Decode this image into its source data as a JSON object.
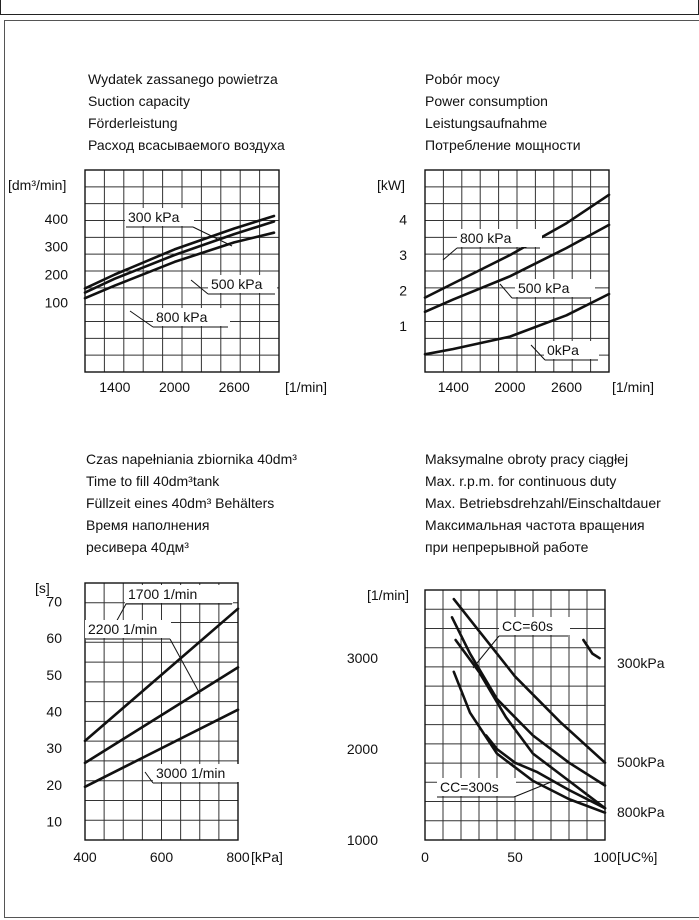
{
  "titles": {
    "c1": [
      "Wydatek zassanego powietrza",
      "Suction capacity",
      "Förderleistung",
      "Расход всасываемого воздуха"
    ],
    "c2": [
      "Pobór mocy",
      "Power consumption",
      "Leistungsaufnahme",
      "Потребление мощности"
    ],
    "c3": [
      "Czas napełniania zbiornika 40dm³",
      "Time to fill  40dm³tank",
      "Füllzeit eines  40dm³ Behälters",
      "Время наполнения",
      "ресивера 40дм³"
    ],
    "c4": [
      "Maksymalne obroty pracy ciągłej",
      "Max. r.p.m. for continuous duty",
      "Max. Betriebsdrehzahl/Einschaltdauer",
      "Максимальная частота вращения",
      "при непрерывной работе"
    ]
  },
  "chart_data": [
    {
      "type": "line",
      "ylabel": "[dm³/min]",
      "xlabel": "[1/min]",
      "xlim": [
        1100,
        3050
      ],
      "ylim": [
        -150,
        575
      ],
      "xticks": [
        "1400",
        "2000",
        "2600"
      ],
      "xtick_values": [
        1400,
        2000,
        2600
      ],
      "yticks": [
        "100",
        "200",
        "300",
        "400"
      ],
      "ytick_values": [
        100,
        200,
        300,
        400
      ],
      "grid": true,
      "series": [
        {
          "name": "300 kPa",
          "x": [
            1100,
            1400,
            2000,
            2600,
            3000
          ],
          "y": [
            150,
            200,
            290,
            365,
            410
          ]
        },
        {
          "name": "500 kPa",
          "x": [
            1100,
            1400,
            2000,
            2600,
            3000
          ],
          "y": [
            135,
            185,
            270,
            345,
            390
          ]
        },
        {
          "name": "800 kPa",
          "x": [
            1100,
            1400,
            2000,
            2600,
            3000
          ],
          "y": [
            115,
            160,
            245,
            315,
            350
          ]
        }
      ],
      "annotations": [
        "300 kPa",
        "500 kPa",
        "800 kPa"
      ]
    },
    {
      "type": "line",
      "ylabel": "[kW]",
      "xlabel": "[1/min]",
      "xlim": [
        1100,
        3050
      ],
      "ylim": [
        -0.3,
        5.4
      ],
      "xticks": [
        "1400",
        "2000",
        "2600"
      ],
      "xtick_values": [
        1400,
        2000,
        2600
      ],
      "yticks": [
        "1",
        "2",
        "3",
        "4"
      ],
      "ytick_values": [
        1,
        2,
        3,
        4
      ],
      "grid": true,
      "series": [
        {
          "name": "800 kPa",
          "x": [
            1100,
            1400,
            2000,
            2600,
            3050
          ],
          "y": [
            1.8,
            2.2,
            3.0,
            3.9,
            4.7
          ]
        },
        {
          "name": "500 kPa",
          "x": [
            1100,
            1400,
            2000,
            2600,
            3050
          ],
          "y": [
            1.4,
            1.75,
            2.4,
            3.2,
            3.85
          ]
        },
        {
          "name": "0kPa",
          "x": [
            1100,
            1400,
            2000,
            2600,
            3050
          ],
          "y": [
            0.2,
            0.35,
            0.7,
            1.3,
            1.9
          ]
        }
      ],
      "annotations": [
        "800 kPa",
        "500 kPa",
        "0kPa"
      ]
    },
    {
      "type": "line",
      "ylabel": "[s]",
      "xlabel": "[kPa]",
      "xlim": [
        400,
        800
      ],
      "ylim": [
        5,
        75
      ],
      "xticks": [
        "400",
        "600",
        "800"
      ],
      "xtick_values": [
        400,
        600,
        800
      ],
      "yticks": [
        "10",
        "20",
        "30",
        "40",
        "50",
        "60",
        "70"
      ],
      "ytick_values": [
        10,
        20,
        30,
        40,
        50,
        60,
        70
      ],
      "grid": true,
      "series": [
        {
          "name": "1700 1/min",
          "x": [
            400,
            800
          ],
          "y": [
            32,
            68
          ]
        },
        {
          "name": "2200 1/min",
          "x": [
            400,
            800
          ],
          "y": [
            26,
            52
          ]
        },
        {
          "name": "3000 1/min",
          "x": [
            400,
            800
          ],
          "y": [
            19.5,
            40.5
          ]
        }
      ],
      "annotations": [
        "1700 1/min",
        "2200 1/min",
        "3000 1/min"
      ]
    },
    {
      "type": "line",
      "ylabel": "[1/min]",
      "xlabel": "[UC%]",
      "xlim": [
        0,
        100
      ],
      "ylim": [
        1000,
        3750
      ],
      "xticks": [
        "0",
        "50",
        "100"
      ],
      "xtick_values": [
        0,
        50,
        100
      ],
      "yticks": [
        "1000",
        "2000",
        "3000"
      ],
      "ytick_values": [
        1000,
        2000,
        3000
      ],
      "grid": true,
      "series": [
        {
          "name": "CC=60s / 300kPa",
          "x": [
            16,
            30,
            50,
            75,
            100
          ],
          "y": [
            3650,
            3300,
            2800,
            2300,
            1850
          ]
        },
        {
          "name": "CC=60s / 500kPa",
          "x": [
            15,
            25,
            40,
            60,
            80,
            100
          ],
          "y": [
            3450,
            3050,
            2550,
            2150,
            1850,
            1600
          ]
        },
        {
          "name": "CC=60s / 800kPa",
          "x": [
            17,
            30,
            45,
            60,
            80,
            100
          ],
          "y": [
            3200,
            2850,
            2350,
            1950,
            1650,
            1350
          ]
        },
        {
          "name": "CC=300s / 500kPa",
          "x": [
            34,
            40,
            50,
            62,
            80,
            100
          ],
          "y": [
            2150,
            2000,
            1850,
            1750,
            1550,
            1350
          ]
        },
        {
          "name": "CC=300s / 800kPa",
          "x": [
            16,
            25,
            40,
            60,
            80,
            100
          ],
          "y": [
            2850,
            2400,
            1950,
            1650,
            1450,
            1300
          ]
        },
        {
          "name": "300kPa",
          "x": [
            88,
            93,
            97
          ],
          "y": [
            3200,
            3050,
            3000
          ]
        }
      ],
      "annotations": [
        "CC=60s",
        "CC=300s",
        "300kPa",
        "500kPa",
        "800kPa"
      ]
    }
  ]
}
